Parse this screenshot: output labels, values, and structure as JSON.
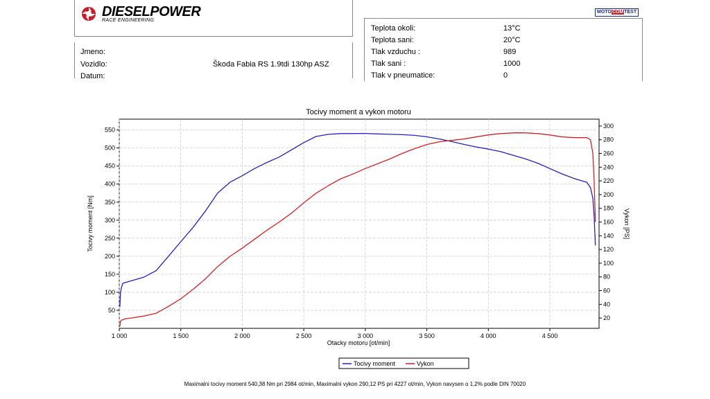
{
  "header": {
    "brand": "DIESELPOWER",
    "brand_sub": "RACE ENGINEERING",
    "partner_logo": {
      "pre": "MOTO",
      "mid": "COM",
      "post": "TEST"
    }
  },
  "vehicle_info": {
    "name_label": "Jmeno:",
    "vehicle_label": "Vozidlo:",
    "vehicle_value": "Škoda Fabia RS 1.9tdi 130hp ASZ",
    "date_label": "Datum:"
  },
  "conditions": [
    {
      "label": "Teplota okoli:",
      "value": "13°C"
    },
    {
      "label": "Teplota sani:",
      "value": "20°C"
    },
    {
      "label": "Tlak vzduchu :",
      "value": "989"
    },
    {
      "label": "Tlak sani :",
      "value": "1000"
    },
    {
      "label": "Tlak v pneumatice:",
      "value": "0"
    }
  ],
  "chart_data": {
    "type": "line",
    "title": "Tocivy moment a vykon motoru",
    "xlabel": "Otacky motoru [ot/min]",
    "ylabel": "Tocivy moment [Nm]",
    "y2label": "Vykon [PS]",
    "xlim": [
      1000,
      4900
    ],
    "ylim": [
      0,
      580
    ],
    "y2lim": [
      5,
      310
    ],
    "x_ticks": [
      1000,
      1500,
      2000,
      2500,
      3000,
      3500,
      4000,
      4500
    ],
    "x_tick_labels": [
      "1 000",
      "1 500",
      "2 000",
      "2 500",
      "3 000",
      "3 500",
      "4 000",
      "4 500"
    ],
    "y_ticks": [
      50,
      100,
      150,
      200,
      250,
      300,
      350,
      400,
      450,
      500,
      550
    ],
    "y2_ticks": [
      20,
      40,
      60,
      80,
      100,
      120,
      140,
      160,
      180,
      200,
      220,
      240,
      260,
      280,
      300
    ],
    "grid": true,
    "legend_position": "bottom-center",
    "series": [
      {
        "name": "Tocivy moment",
        "color": "#2020c8",
        "axis": "left",
        "x": [
          1005,
          1010,
          1020,
          1030,
          1100,
          1200,
          1300,
          1400,
          1500,
          1600,
          1700,
          1800,
          1900,
          2000,
          2100,
          2200,
          2300,
          2400,
          2500,
          2600,
          2700,
          2800,
          2900,
          2984,
          3100,
          3200,
          3300,
          3400,
          3500,
          3600,
          3700,
          3800,
          3900,
          4000,
          4100,
          4200,
          4300,
          4400,
          4500,
          4600,
          4700,
          4800,
          4830,
          4850,
          4860,
          4870
        ],
        "y": [
          60,
          100,
          115,
          125,
          132,
          142,
          160,
          200,
          240,
          280,
          325,
          375,
          405,
          423,
          443,
          460,
          475,
          495,
          515,
          532,
          538,
          540,
          540,
          540.38,
          539,
          538,
          537,
          535,
          531,
          525,
          518,
          510,
          503,
          497,
          490,
          480,
          470,
          458,
          443,
          428,
          415,
          405,
          390,
          360,
          310,
          230
        ]
      },
      {
        "name": "Vykon",
        "color": "#d42020",
        "axis": "right",
        "x": [
          1005,
          1010,
          1020,
          1050,
          1100,
          1200,
          1300,
          1400,
          1500,
          1600,
          1700,
          1800,
          1900,
          2000,
          2100,
          2200,
          2300,
          2400,
          2500,
          2600,
          2700,
          2800,
          2900,
          3000,
          3100,
          3200,
          3300,
          3400,
          3500,
          3600,
          3700,
          3800,
          3900,
          4000,
          4100,
          4227,
          4300,
          4400,
          4500,
          4600,
          4700,
          4800,
          4830,
          4850,
          4860,
          4870
        ],
        "y": [
          8,
          15,
          17,
          19,
          20,
          23,
          27,
          37,
          48,
          62,
          77,
          95,
          110,
          122,
          135,
          148,
          160,
          173,
          188,
          202,
          213,
          223,
          230,
          238,
          245,
          252,
          260,
          267,
          273,
          277,
          279,
          281,
          284,
          287,
          289,
          290.12,
          290,
          289,
          287,
          284,
          283,
          283,
          280,
          260,
          220,
          160
        ]
      }
    ]
  },
  "footer": {
    "text": "Maximalni tocivy moment 540,38 Nm pri 2984 ot/min,  Maximalni vykon 290,12 PS pri 4227 ot/min,  Vykon navysen o 1,2% podle DIN 70020"
  }
}
